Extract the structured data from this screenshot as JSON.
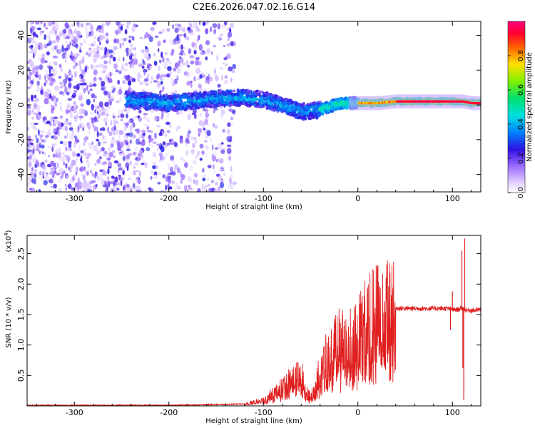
{
  "title": "C2E6.2026.047.02.16.G14",
  "chart_data": [
    {
      "type": "heatmap",
      "name": "spectrogram",
      "xlabel": "Height of straight line (km)",
      "ylabel": "Frequency (Hz)",
      "xlim": [
        -350,
        130
      ],
      "ylim": [
        -50,
        48
      ],
      "x_ticks": [
        -300,
        -200,
        -100,
        0,
        100
      ],
      "y_ticks": [
        -40,
        -20,
        0,
        20,
        40
      ],
      "ridge": {
        "description": "dominant frequency track (Hz) vs height (km)",
        "x": [
          -245,
          -220,
          -200,
          -180,
          -160,
          -140,
          -120,
          -100,
          -80,
          -65,
          -55,
          -45,
          -35,
          -25,
          -15,
          0,
          20,
          40,
          60,
          80,
          100,
          110,
          120,
          130
        ],
        "y": [
          3,
          2,
          1,
          2,
          3,
          4,
          4,
          3,
          0,
          -3,
          -4,
          -3,
          -2,
          0,
          1,
          1,
          1,
          2,
          2,
          2,
          2,
          2,
          1,
          1
        ]
      },
      "noise_region_km": [
        -350,
        -130
      ],
      "colorbar": {
        "label": "Normalized spectral amplitude",
        "ticks": [
          "0.0",
          "0.2",
          "0.4",
          "0.6",
          "0.8"
        ],
        "range": [
          0,
          1
        ]
      }
    },
    {
      "type": "line",
      "name": "snr",
      "xlabel": "Height of straight line (km)",
      "ylabel": "SNR (10 * v/v)",
      "multiplier_label": "(x10",
      "multiplier_exponent": "4",
      "xlim": [
        -350,
        130
      ],
      "ylim": [
        0,
        2.8
      ],
      "x_ticks": [
        -300,
        -200,
        -100,
        0,
        100
      ],
      "y_ticks": [
        "0.5",
        "1.0",
        "1.5",
        "2.0",
        "2.5"
      ],
      "envelope": {
        "x": [
          -350,
          -200,
          -120,
          -100,
          -90,
          -80,
          -70,
          -60,
          -55,
          -50,
          -45,
          -40,
          -35,
          -30,
          -25,
          -20,
          -15,
          -10,
          -5,
          0,
          10,
          20,
          30,
          40,
          60,
          80,
          95,
          100,
          105,
          110,
          112,
          114,
          118,
          125,
          130
        ],
        "y": [
          0.01,
          0.01,
          0.03,
          0.1,
          0.2,
          0.32,
          0.45,
          0.5,
          0.3,
          0.12,
          0.35,
          0.6,
          0.75,
          0.8,
          0.95,
          1.05,
          1.05,
          1.1,
          1.15,
          1.2,
          1.4,
          1.52,
          1.57,
          1.6,
          1.6,
          1.6,
          1.6,
          1.58,
          1.58,
          1.6,
          1.6,
          1.57,
          1.57,
          1.57,
          1.58
        ]
      },
      "spikes": [
        {
          "x": 98,
          "y": 1.25
        },
        {
          "x": 100,
          "y": 1.88
        },
        {
          "x": 110,
          "y": 2.55
        },
        {
          "x": 111,
          "y": 0.62
        },
        {
          "x": 112,
          "y": 0.1
        },
        {
          "x": 113,
          "y": 2.75
        }
      ]
    }
  ]
}
